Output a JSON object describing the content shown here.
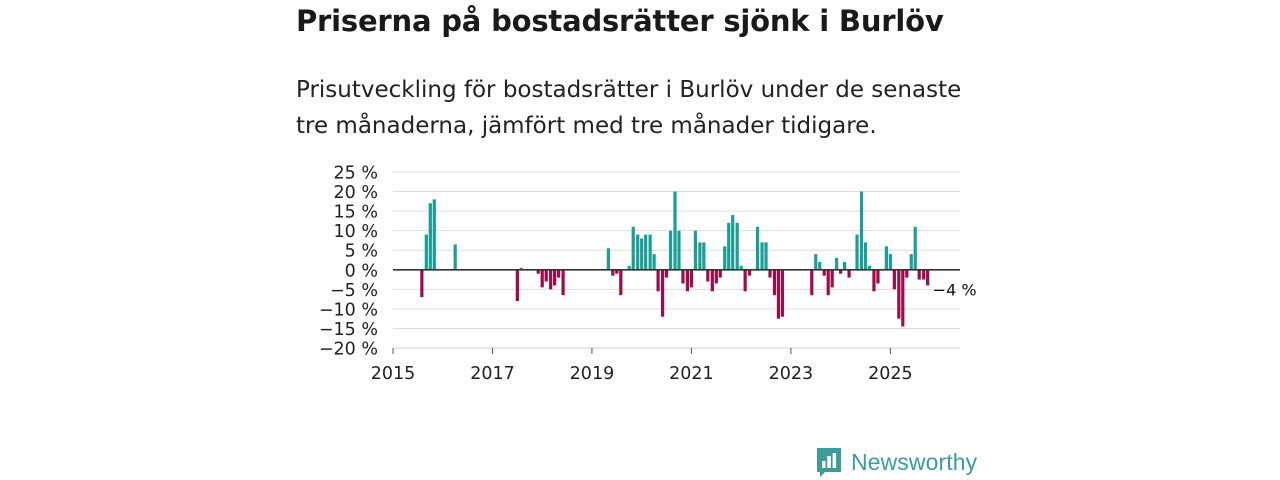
{
  "title": "Priserna på bostadsrätter sjönk i Burlöv",
  "subtitle": "Prisutveckling för bostadsrätter i Burlöv under de senaste tre månaderna, jämfört med tre månader tidigare.",
  "brand": {
    "name": "Newsworthy",
    "icon": "chart-bubble-icon"
  },
  "colors": {
    "positive": "#1a9e96",
    "negative": "#a00a4b",
    "grid": "#dddddd",
    "zero_line": "#333333",
    "brand": "#3a9e96"
  },
  "chart_data": {
    "type": "bar",
    "ylim": [
      -20,
      25
    ],
    "yticks": [
      25,
      20,
      15,
      10,
      5,
      0,
      -5,
      -10,
      -15,
      -20
    ],
    "ytick_labels": [
      "25 %",
      "20 %",
      "15 %",
      "10 %",
      "5 %",
      "0 %",
      "−5 %",
      "−10 %",
      "−15 %",
      "−20 %"
    ],
    "xlim": [
      2015.0,
      2026.4
    ],
    "xticks": [
      2015,
      2017,
      2019,
      2021,
      2023,
      2025
    ],
    "xtick_labels": [
      "2015",
      "2017",
      "2019",
      "2021",
      "2023",
      "2025"
    ],
    "grid": true,
    "last_value_label": "−4 %",
    "series": [
      {
        "x": 2015.58,
        "value": -7
      },
      {
        "x": 2015.67,
        "value": 9
      },
      {
        "x": 2015.75,
        "value": 17
      },
      {
        "x": 2015.83,
        "value": 18
      },
      {
        "x": 2016.25,
        "value": 6.5
      },
      {
        "x": 2017.5,
        "value": -8
      },
      {
        "x": 2017.58,
        "value": 0.5
      },
      {
        "x": 2017.92,
        "value": -1
      },
      {
        "x": 2018.0,
        "value": -4.5
      },
      {
        "x": 2018.08,
        "value": -3
      },
      {
        "x": 2018.17,
        "value": -5
      },
      {
        "x": 2018.25,
        "value": -4
      },
      {
        "x": 2018.33,
        "value": -2
      },
      {
        "x": 2018.42,
        "value": -6.5
      },
      {
        "x": 2019.33,
        "value": 5.5
      },
      {
        "x": 2019.42,
        "value": -1.5
      },
      {
        "x": 2019.5,
        "value": -1
      },
      {
        "x": 2019.58,
        "value": -6.5
      },
      {
        "x": 2019.75,
        "value": 1
      },
      {
        "x": 2019.83,
        "value": 11
      },
      {
        "x": 2019.92,
        "value": 9
      },
      {
        "x": 2020.0,
        "value": 8
      },
      {
        "x": 2020.08,
        "value": 9
      },
      {
        "x": 2020.17,
        "value": 9
      },
      {
        "x": 2020.25,
        "value": 4
      },
      {
        "x": 2020.33,
        "value": -5.5
      },
      {
        "x": 2020.42,
        "value": -12
      },
      {
        "x": 2020.5,
        "value": -2
      },
      {
        "x": 2020.58,
        "value": 10
      },
      {
        "x": 2020.67,
        "value": 20
      },
      {
        "x": 2020.75,
        "value": 10
      },
      {
        "x": 2020.83,
        "value": -3.5
      },
      {
        "x": 2020.92,
        "value": -5.5
      },
      {
        "x": 2021.0,
        "value": -4.5
      },
      {
        "x": 2021.08,
        "value": 10
      },
      {
        "x": 2021.17,
        "value": 7
      },
      {
        "x": 2021.25,
        "value": 7
      },
      {
        "x": 2021.33,
        "value": -3
      },
      {
        "x": 2021.42,
        "value": -5.5
      },
      {
        "x": 2021.5,
        "value": -3.5
      },
      {
        "x": 2021.58,
        "value": -2
      },
      {
        "x": 2021.67,
        "value": 6
      },
      {
        "x": 2021.75,
        "value": 12
      },
      {
        "x": 2021.83,
        "value": 14
      },
      {
        "x": 2021.92,
        "value": 12
      },
      {
        "x": 2022.0,
        "value": 1
      },
      {
        "x": 2022.08,
        "value": -5.5
      },
      {
        "x": 2022.17,
        "value": -1.5
      },
      {
        "x": 2022.33,
        "value": 11
      },
      {
        "x": 2022.42,
        "value": 7
      },
      {
        "x": 2022.5,
        "value": 7
      },
      {
        "x": 2022.58,
        "value": -2
      },
      {
        "x": 2022.67,
        "value": -6.5
      },
      {
        "x": 2022.75,
        "value": -12.5
      },
      {
        "x": 2022.83,
        "value": -12
      },
      {
        "x": 2023.42,
        "value": -6.5
      },
      {
        "x": 2023.5,
        "value": 4
      },
      {
        "x": 2023.58,
        "value": 2
      },
      {
        "x": 2023.67,
        "value": -1.5
      },
      {
        "x": 2023.75,
        "value": -6.5
      },
      {
        "x": 2023.83,
        "value": -4.5
      },
      {
        "x": 2023.92,
        "value": 3
      },
      {
        "x": 2024.0,
        "value": -1
      },
      {
        "x": 2024.08,
        "value": 2
      },
      {
        "x": 2024.17,
        "value": -2
      },
      {
        "x": 2024.33,
        "value": 9
      },
      {
        "x": 2024.42,
        "value": 20
      },
      {
        "x": 2024.5,
        "value": 7
      },
      {
        "x": 2024.58,
        "value": 1
      },
      {
        "x": 2024.67,
        "value": -5.5
      },
      {
        "x": 2024.75,
        "value": -3.5
      },
      {
        "x": 2024.92,
        "value": 6
      },
      {
        "x": 2025.0,
        "value": 4
      },
      {
        "x": 2025.08,
        "value": -5
      },
      {
        "x": 2025.17,
        "value": -12.5
      },
      {
        "x": 2025.25,
        "value": -14.5
      },
      {
        "x": 2025.33,
        "value": -2
      },
      {
        "x": 2025.42,
        "value": 4
      },
      {
        "x": 2025.5,
        "value": 11
      },
      {
        "x": 2025.58,
        "value": -2.5
      },
      {
        "x": 2025.67,
        "value": -2.5
      },
      {
        "x": 2025.75,
        "value": -4
      }
    ]
  }
}
